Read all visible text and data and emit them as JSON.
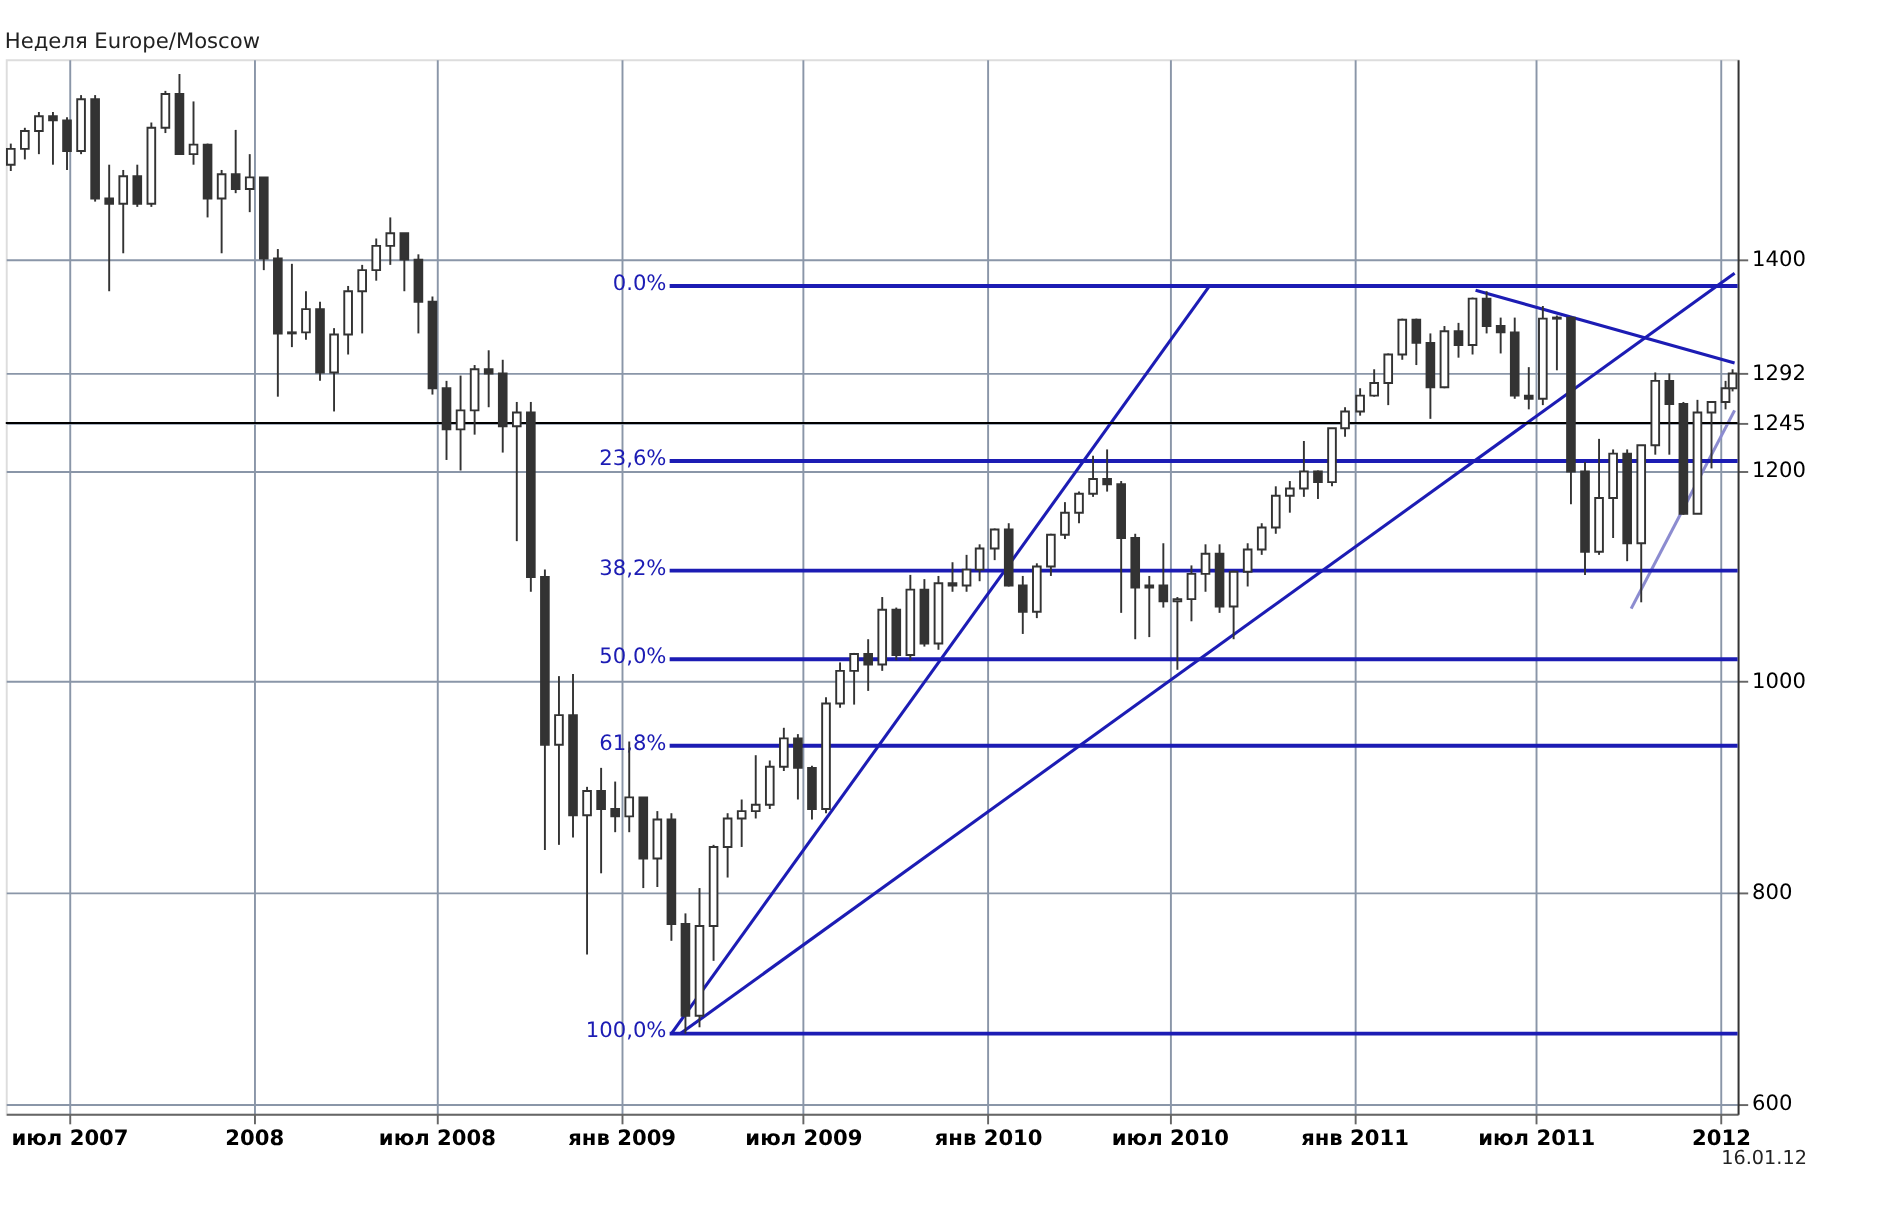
{
  "chart_data": {
    "type": "candlestick",
    "title": "Неделя Europe/Moscow",
    "x": [
      "2007-05-04",
      "2007-05-18",
      "2007-06-01",
      "2007-06-15",
      "2007-06-29",
      "2007-07-13",
      "2007-07-27",
      "2007-08-10",
      "2007-08-24",
      "2007-09-07",
      "2007-09-21",
      "2007-10-05",
      "2007-10-19",
      "2007-11-02",
      "2007-11-16",
      "2007-11-30",
      "2007-12-14",
      "2007-12-28",
      "2008-01-11",
      "2008-01-25",
      "2008-02-08",
      "2008-02-22",
      "2008-03-07",
      "2008-03-21",
      "2008-04-04",
      "2008-04-18",
      "2008-05-02",
      "2008-05-16",
      "2008-05-30",
      "2008-06-13",
      "2008-06-27",
      "2008-07-11",
      "2008-07-25",
      "2008-08-08",
      "2008-08-22",
      "2008-09-05",
      "2008-09-19",
      "2008-10-03",
      "2008-10-17",
      "2008-10-31",
      "2008-11-14",
      "2008-11-28",
      "2008-12-12",
      "2008-12-26",
      "2009-01-09",
      "2009-01-23",
      "2009-02-06",
      "2009-02-20",
      "2009-03-06",
      "2009-03-20",
      "2009-04-03",
      "2009-04-17",
      "2009-05-01",
      "2009-05-15",
      "2009-05-29",
      "2009-06-12",
      "2009-06-26",
      "2009-07-10",
      "2009-07-24",
      "2009-08-07",
      "2009-08-21",
      "2009-09-04",
      "2009-09-18",
      "2009-10-02",
      "2009-10-16",
      "2009-10-30",
      "2009-11-13",
      "2009-11-27",
      "2009-12-11",
      "2009-12-24",
      "2010-01-08",
      "2010-01-22",
      "2010-02-05",
      "2010-02-19",
      "2010-03-05",
      "2010-03-19",
      "2010-04-02",
      "2010-04-16",
      "2010-04-30",
      "2010-05-14",
      "2010-05-28",
      "2010-06-11",
      "2010-06-25",
      "2010-07-09",
      "2010-07-23",
      "2010-08-06",
      "2010-08-20",
      "2010-09-03",
      "2010-09-17",
      "2010-10-01",
      "2010-10-15",
      "2010-10-29",
      "2010-11-12",
      "2010-11-26",
      "2010-12-10",
      "2010-12-23",
      "2011-01-07",
      "2011-01-21",
      "2011-02-04",
      "2011-02-18",
      "2011-03-04",
      "2011-03-18",
      "2011-04-01",
      "2011-04-15",
      "2011-04-29",
      "2011-05-13",
      "2011-05-27",
      "2011-06-10",
      "2011-06-24",
      "2011-07-08",
      "2011-07-22",
      "2011-08-05",
      "2011-08-19",
      "2011-09-02",
      "2011-09-16",
      "2011-09-30",
      "2011-10-14",
      "2011-10-28",
      "2011-11-11",
      "2011-11-25",
      "2011-12-09",
      "2011-12-23",
      "2012-01-06",
      "2012-01-13"
    ],
    "series": [
      {
        "type": "candlestick",
        "color": "#333333",
        "ohlc": [
          [
            1490,
            1510,
            1484,
            1505
          ],
          [
            1505,
            1525,
            1495,
            1522
          ],
          [
            1522,
            1540,
            1500,
            1536
          ],
          [
            1536,
            1540,
            1490,
            1532
          ],
          [
            1532,
            1535,
            1485,
            1503
          ],
          [
            1503,
            1556,
            1500,
            1552
          ],
          [
            1552,
            1556,
            1455,
            1458
          ],
          [
            1458,
            1490,
            1370,
            1453
          ],
          [
            1453,
            1485,
            1406,
            1479
          ],
          [
            1479,
            1490,
            1450,
            1453
          ],
          [
            1453,
            1530,
            1450,
            1525
          ],
          [
            1525,
            1560,
            1520,
            1557
          ],
          [
            1557,
            1576,
            1500,
            1500
          ],
          [
            1500,
            1550,
            1490,
            1509
          ],
          [
            1509,
            1510,
            1440,
            1458
          ],
          [
            1458,
            1485,
            1406,
            1481
          ],
          [
            1481,
            1523,
            1463,
            1467
          ],
          [
            1467,
            1500,
            1445,
            1478
          ],
          [
            1478,
            1478,
            1390,
            1401
          ],
          [
            1401,
            1410,
            1270,
            1330
          ],
          [
            1330,
            1396,
            1317,
            1331
          ],
          [
            1331,
            1370,
            1324,
            1353
          ],
          [
            1353,
            1360,
            1285,
            1293
          ],
          [
            1293,
            1335,
            1256,
            1329
          ],
          [
            1329,
            1375,
            1310,
            1370
          ],
          [
            1370,
            1395,
            1330,
            1390
          ],
          [
            1390,
            1420,
            1380,
            1413
          ],
          [
            1413,
            1440,
            1395,
            1425
          ],
          [
            1425,
            1425,
            1370,
            1400
          ],
          [
            1400,
            1405,
            1330,
            1360
          ],
          [
            1360,
            1365,
            1272,
            1278
          ],
          [
            1278,
            1285,
            1210,
            1239
          ],
          [
            1239,
            1290,
            1200,
            1257
          ],
          [
            1257,
            1300,
            1234,
            1296
          ],
          [
            1296,
            1314,
            1260,
            1292
          ],
          [
            1292,
            1305,
            1217,
            1242
          ],
          [
            1242,
            1265,
            1133,
            1255
          ],
          [
            1255,
            1265,
            1085,
            1099
          ],
          [
            1099,
            1106,
            840,
            940
          ],
          [
            940,
            1005,
            845,
            968
          ],
          [
            968,
            1007,
            852,
            873
          ],
          [
            873,
            900,
            741,
            896
          ],
          [
            896,
            918,
            818,
            879
          ],
          [
            879,
            905,
            857,
            872
          ],
          [
            872,
            943,
            857,
            890
          ],
          [
            890,
            890,
            804,
            832
          ],
          [
            832,
            877,
            805,
            869
          ],
          [
            869,
            875,
            754,
            770
          ],
          [
            770,
            780,
            666,
            683
          ],
          [
            683,
            804,
            672,
            768
          ],
          [
            768,
            845,
            735,
            843
          ],
          [
            843,
            875,
            814,
            870
          ],
          [
            870,
            888,
            843,
            877
          ],
          [
            877,
            930,
            870,
            883
          ],
          [
            883,
            925,
            879,
            919
          ],
          [
            919,
            956,
            915,
            946
          ],
          [
            946,
            950,
            888,
            918
          ],
          [
            918,
            920,
            869,
            879
          ],
          [
            879,
            985,
            875,
            979
          ],
          [
            979,
            1018,
            975,
            1010
          ],
          [
            1010,
            1027,
            978,
            1026
          ],
          [
            1026,
            1040,
            991,
            1016
          ],
          [
            1016,
            1080,
            1010,
            1068
          ],
          [
            1068,
            1070,
            1020,
            1025
          ],
          [
            1025,
            1101,
            1020,
            1087
          ],
          [
            1087,
            1097,
            1033,
            1036
          ],
          [
            1036,
            1100,
            1030,
            1093
          ],
          [
            1093,
            1113,
            1085,
            1091
          ],
          [
            1091,
            1120,
            1085,
            1106
          ],
          [
            1106,
            1130,
            1095,
            1126
          ],
          [
            1126,
            1145,
            1115,
            1144
          ],
          [
            1144,
            1150,
            1090,
            1091
          ],
          [
            1091,
            1100,
            1045,
            1066
          ],
          [
            1066,
            1112,
            1060,
            1109
          ],
          [
            1109,
            1140,
            1100,
            1139
          ],
          [
            1139,
            1170,
            1135,
            1160
          ],
          [
            1160,
            1180,
            1150,
            1178
          ],
          [
            1178,
            1214,
            1175,
            1192
          ],
          [
            1192,
            1220,
            1180,
            1187
          ],
          [
            1187,
            1190,
            1065,
            1136
          ],
          [
            1136,
            1140,
            1040,
            1089
          ],
          [
            1089,
            1100,
            1042,
            1091
          ],
          [
            1091,
            1131,
            1070,
            1076
          ],
          [
            1076,
            1080,
            1011,
            1078
          ],
          [
            1078,
            1110,
            1057,
            1102
          ],
          [
            1102,
            1130,
            1085,
            1121
          ],
          [
            1121,
            1130,
            1065,
            1071
          ],
          [
            1071,
            1105,
            1040,
            1104
          ],
          [
            1104,
            1131,
            1090,
            1125
          ],
          [
            1125,
            1150,
            1120,
            1146
          ],
          [
            1146,
            1185,
            1140,
            1176
          ],
          [
            1176,
            1190,
            1160,
            1183
          ],
          [
            1183,
            1228,
            1175,
            1199
          ],
          [
            1199,
            1200,
            1173,
            1189
          ],
          [
            1189,
            1240,
            1185,
            1240
          ],
          [
            1240,
            1260,
            1232,
            1256
          ],
          [
            1256,
            1278,
            1252,
            1271
          ],
          [
            1271,
            1296,
            1270,
            1283
          ],
          [
            1283,
            1311,
            1262,
            1310
          ],
          [
            1310,
            1344,
            1305,
            1343
          ],
          [
            1343,
            1344,
            1300,
            1321
          ],
          [
            1321,
            1330,
            1249,
            1279
          ],
          [
            1279,
            1337,
            1278,
            1332
          ],
          [
            1332,
            1340,
            1307,
            1319
          ],
          [
            1319,
            1364,
            1310,
            1363
          ],
          [
            1363,
            1370,
            1330,
            1337
          ],
          [
            1337,
            1345,
            1311,
            1331
          ],
          [
            1331,
            1345,
            1268,
            1271
          ],
          [
            1271,
            1298,
            1258,
            1268
          ],
          [
            1268,
            1356,
            1262,
            1344
          ],
          [
            1344,
            1347,
            1295,
            1345
          ],
          [
            1345,
            1346,
            1168,
            1199
          ],
          [
            1199,
            1208,
            1101,
            1123
          ],
          [
            1123,
            1230,
            1120,
            1174
          ],
          [
            1174,
            1220,
            1136,
            1216
          ],
          [
            1216,
            1220,
            1114,
            1131
          ],
          [
            1131,
            1224,
            1075,
            1224
          ],
          [
            1224,
            1293,
            1215,
            1285
          ],
          [
            1285,
            1292,
            1215,
            1263
          ],
          [
            1263,
            1265,
            1158,
            1159
          ],
          [
            1159,
            1267,
            1159,
            1255
          ],
          [
            1255,
            1265,
            1202,
            1265
          ],
          [
            1265,
            1285,
            1258,
            1278
          ],
          [
            1278,
            1296,
            1275,
            1292
          ]
        ]
      },
      {
        "type": "line",
        "color": "#1c1cb4",
        "x": [
          "2009-02-20",
          "2010-08-10"
        ],
        "values": [
          666,
          1375
        ]
      },
      {
        "type": "line",
        "color": "#1c1cb4",
        "x": [
          "2009-03-01",
          "2012-01-15"
        ],
        "values": [
          666,
          1387
        ]
      },
      {
        "type": "line",
        "color": "#1c1cb4",
        "x": [
          "2011-05-02",
          "2012-01-15"
        ],
        "values": [
          1371,
          1302
        ]
      },
      {
        "type": "line",
        "color": "#8c8cd0",
        "x": [
          "2011-10-04",
          "2012-01-15"
        ],
        "values": [
          1069,
          1257
        ]
      }
    ],
    "ref_lines": [
      {
        "axis": "y",
        "value": 1375,
        "color": "#1c1cb4"
      },
      {
        "axis": "y",
        "value": 1209,
        "color": "#1c1cb4"
      },
      {
        "axis": "y",
        "value": 1105,
        "color": "#1c1cb4"
      },
      {
        "axis": "y",
        "value": 1021,
        "color": "#1c1cb4"
      },
      {
        "axis": "y",
        "value": 939,
        "color": "#1c1cb4"
      },
      {
        "axis": "y",
        "value": 666,
        "color": "#1c1cb4"
      },
      {
        "axis": "y",
        "value": 1245,
        "color": "#000000"
      }
    ],
    "xlim": [
      "2007-04-29",
      "2012-01-18"
    ],
    "xticks": [
      {
        "value": "2007-07-01",
        "label": "июл 2007"
      },
      {
        "value": "2008-01-01",
        "label": "2008"
      },
      {
        "value": "2008-07-01",
        "label": "июл 2008"
      },
      {
        "value": "2009-01-01",
        "label": "янв 2009"
      },
      {
        "value": "2009-07-01",
        "label": "июл 2009"
      },
      {
        "value": "2010-01-01",
        "label": "янв 2010"
      },
      {
        "value": "2010-07-01",
        "label": "июл 2010"
      },
      {
        "value": "2011-01-01",
        "label": "янв 2011"
      },
      {
        "value": "2011-07-01",
        "label": "июл 2011"
      },
      {
        "value": "2012-01-01",
        "label": "2012"
      }
    ],
    "ylim": [
      590,
      1590
    ],
    "yticks": [
      600,
      800,
      1000,
      1200,
      1245,
      1292,
      1400
    ],
    "grid": true,
    "annotations": [
      {
        "text": "0.0%",
        "x": "2009-02-17",
        "y": 1375
      },
      {
        "text": "23,6%",
        "x": "2009-02-17",
        "y": 1209
      },
      {
        "text": "38,2%",
        "x": "2009-02-17",
        "y": 1105
      },
      {
        "text": "50,0%",
        "x": "2009-02-17",
        "y": 1021
      },
      {
        "text": "61,8%",
        "x": "2009-02-17",
        "y": 939
      },
      {
        "text": "100,0%",
        "x": "2009-02-17",
        "y": 666
      },
      "16.01.12"
    ]
  }
}
